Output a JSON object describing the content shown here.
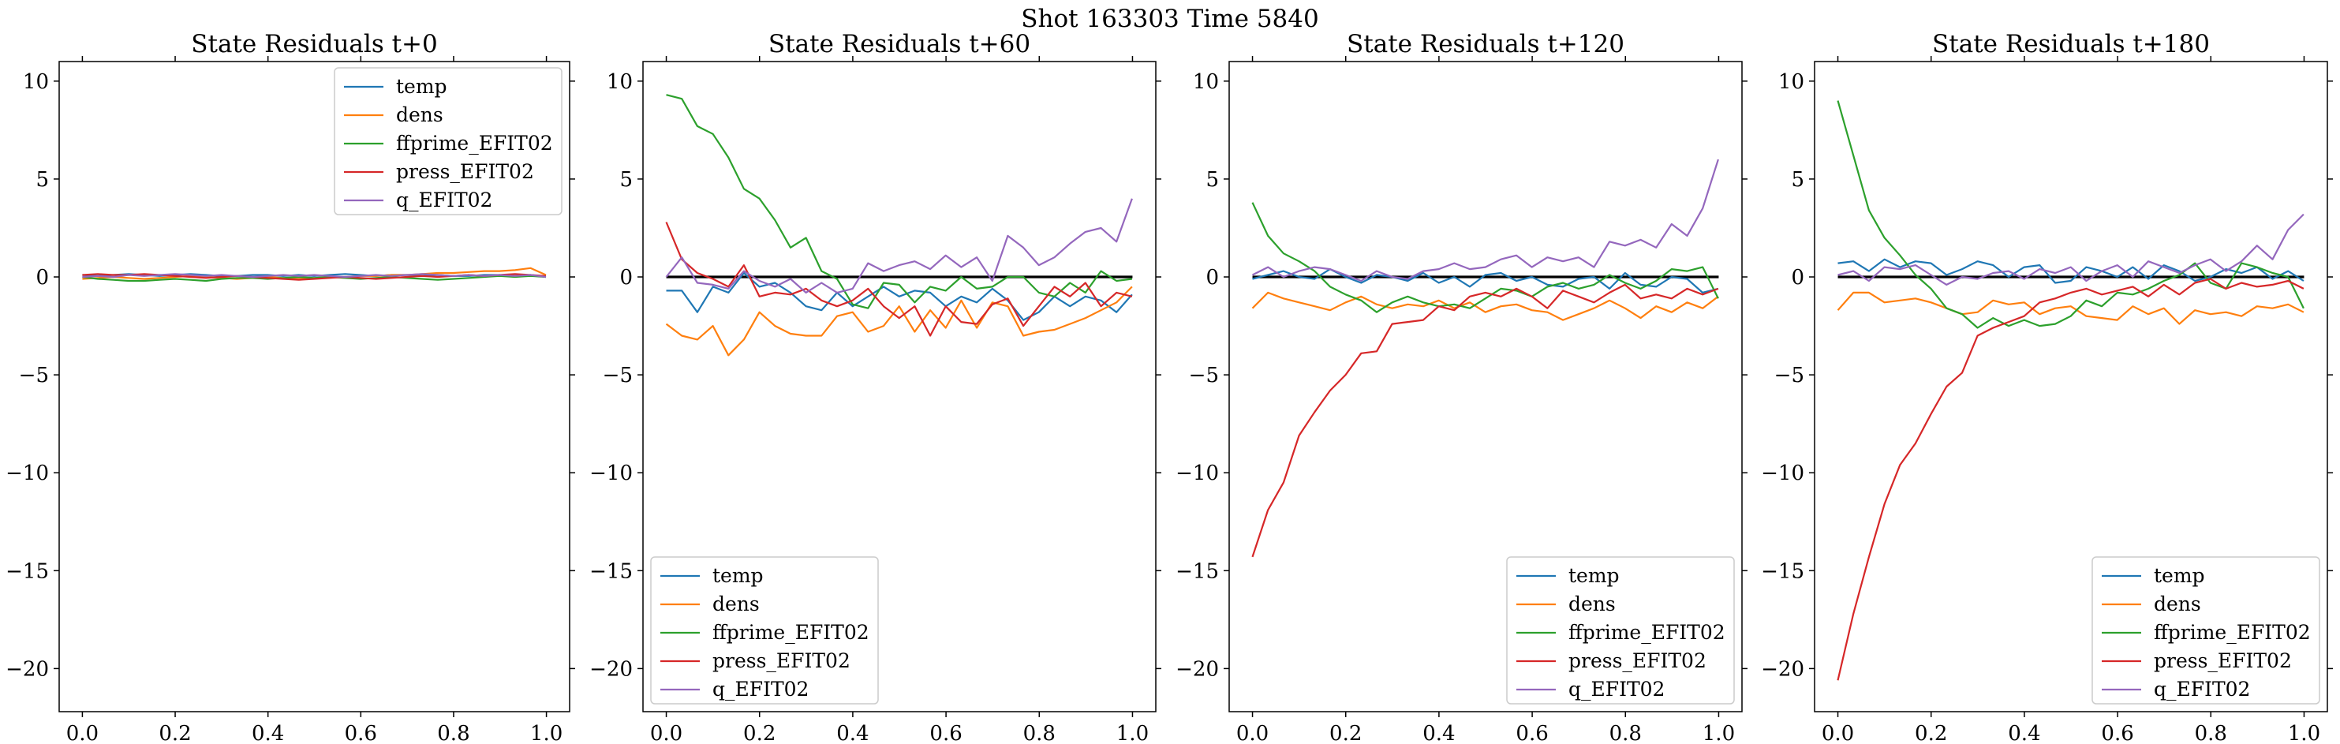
{
  "figure": {
    "suptitle": "Shot 163303   Time 5840"
  },
  "colors": {
    "temp": "#1f77b4",
    "dens": "#ff7f0e",
    "ffprime_EFIT02": "#2ca02c",
    "press_EFIT02": "#d62728",
    "q_EFIT02": "#9467bd",
    "zero_line": "#000000"
  },
  "chart_data": [
    {
      "type": "line",
      "title": "State Residuals t+0",
      "xlim": [
        -0.05,
        1.05
      ],
      "ylim": [
        -22.2,
        11.0
      ],
      "xticks": [
        "0.0",
        "0.2",
        "0.4",
        "0.6",
        "0.8",
        "1.0"
      ],
      "yticks": [
        "10",
        "5",
        "0",
        "−5",
        "−10",
        "−15",
        "−20"
      ],
      "legend_position": "upper-right",
      "zero_line": false,
      "x_start": 0,
      "x_step": 0.0333,
      "series": [
        {
          "name": "temp",
          "values": [
            0.1,
            0.05,
            0.1,
            0.15,
            0.1,
            0.05,
            0.1,
            0.15,
            0.1,
            0.05,
            0.05,
            0.1,
            0.1,
            0.05,
            0.1,
            0.05,
            0.1,
            0.15,
            0.1,
            0.05,
            0.1,
            0.1,
            0.05,
            0.1,
            0.05,
            0.05,
            0.1,
            0.1,
            0.05,
            0.1,
            0.0
          ]
        },
        {
          "name": "dens",
          "values": [
            -0.1,
            -0.05,
            0.0,
            -0.05,
            -0.1,
            -0.05,
            0.0,
            0.05,
            0.0,
            -0.05,
            -0.1,
            -0.05,
            0.0,
            -0.05,
            -0.1,
            -0.05,
            0.0,
            0.0,
            0.05,
            0.05,
            0.1,
            0.1,
            0.15,
            0.2,
            0.2,
            0.25,
            0.3,
            0.3,
            0.35,
            0.45,
            0.1
          ]
        },
        {
          "name": "ffprime_EFIT02",
          "values": [
            0.0,
            -0.1,
            -0.15,
            -0.2,
            -0.2,
            -0.15,
            -0.1,
            -0.15,
            -0.2,
            -0.1,
            -0.05,
            -0.05,
            -0.1,
            -0.05,
            0.0,
            -0.05,
            0.0,
            -0.05,
            -0.1,
            -0.05,
            0.0,
            -0.05,
            -0.1,
            -0.15,
            -0.1,
            -0.05,
            0.0,
            0.05,
            0.0,
            0.05,
            0.0
          ]
        },
        {
          "name": "press_EFIT02",
          "values": [
            0.1,
            0.15,
            0.1,
            0.1,
            0.15,
            0.1,
            0.05,
            0.0,
            -0.05,
            0.0,
            0.05,
            0.0,
            -0.05,
            -0.1,
            -0.15,
            -0.1,
            -0.05,
            0.0,
            -0.05,
            -0.1,
            -0.05,
            0.0,
            0.05,
            0.0,
            0.05,
            0.1,
            0.05,
            0.1,
            0.15,
            0.1,
            0.05
          ]
        },
        {
          "name": "q_EFIT02",
          "values": [
            0.0,
            0.05,
            0.0,
            0.1,
            0.05,
            0.1,
            0.15,
            0.1,
            0.05,
            0.1,
            0.05,
            0.0,
            0.05,
            0.1,
            0.05,
            0.1,
            0.05,
            0.0,
            0.05,
            0.1,
            0.05,
            0.1,
            0.15,
            0.1,
            0.05,
            0.1,
            0.05,
            0.1,
            0.05,
            0.1,
            0.0
          ]
        }
      ]
    },
    {
      "type": "line",
      "title": "State Residuals t+60",
      "xlim": [
        -0.05,
        1.05
      ],
      "ylim": [
        -22.2,
        11.0
      ],
      "xticks": [
        "0.0",
        "0.2",
        "0.4",
        "0.6",
        "0.8",
        "1.0"
      ],
      "yticks": [
        "10",
        "5",
        "0",
        "−5",
        "−10",
        "−15",
        "−20"
      ],
      "legend_position": "lower-left",
      "zero_line": true,
      "x_start": 0,
      "x_step": 0.0333,
      "series": [
        {
          "name": "temp",
          "values": [
            -0.7,
            -0.7,
            -1.8,
            -0.5,
            -0.8,
            0.2,
            -0.5,
            -0.3,
            -0.8,
            -1.5,
            -1.7,
            -0.8,
            -1.5,
            -1.0,
            -0.5,
            -1.0,
            -0.7,
            -0.8,
            -1.5,
            -1.0,
            -1.3,
            -0.6,
            -1.2,
            -2.2,
            -1.8,
            -1.0,
            -1.5,
            -1.0,
            -1.2,
            -1.8,
            -0.9
          ]
        },
        {
          "name": "dens",
          "values": [
            -2.4,
            -3.0,
            -3.2,
            -2.5,
            -4.0,
            -3.2,
            -1.8,
            -2.5,
            -2.9,
            -3.0,
            -3.0,
            -2.0,
            -1.8,
            -2.8,
            -2.5,
            -1.5,
            -2.8,
            -1.7,
            -2.6,
            -1.2,
            -2.6,
            -1.3,
            -1.5,
            -3.0,
            -2.8,
            -2.7,
            -2.4,
            -2.1,
            -1.7,
            -1.3,
            -0.5
          ]
        },
        {
          "name": "ffprime_EFIT02",
          "values": [
            9.3,
            9.1,
            7.7,
            7.3,
            6.1,
            4.5,
            4.0,
            2.9,
            1.5,
            2.0,
            0.3,
            -0.1,
            -1.4,
            -1.6,
            -0.3,
            -0.4,
            -1.3,
            -0.5,
            -0.7,
            0.0,
            -0.6,
            -0.5,
            0.0,
            0.0,
            -0.8,
            -1.0,
            -0.3,
            -0.8,
            0.3,
            -0.2,
            -0.1
          ]
        },
        {
          "name": "press_EFIT02",
          "values": [
            2.8,
            0.9,
            0.2,
            -0.1,
            -0.5,
            0.6,
            -1.0,
            -0.8,
            -0.9,
            -0.6,
            -1.2,
            -1.5,
            -1.2,
            -0.6,
            -1.5,
            -2.1,
            -1.5,
            -3.0,
            -1.5,
            -2.3,
            -2.4,
            -1.4,
            -1.1,
            -2.5,
            -1.5,
            -0.5,
            -1.0,
            -0.3,
            -1.5,
            -0.8,
            -1.0
          ]
        },
        {
          "name": "q_EFIT02",
          "values": [
            0.0,
            1.0,
            -0.3,
            -0.4,
            -0.6,
            0.3,
            -0.2,
            -0.5,
            -0.1,
            -0.8,
            -0.3,
            -0.8,
            -0.6,
            0.7,
            0.3,
            0.6,
            0.8,
            0.4,
            1.1,
            0.5,
            1.0,
            -0.2,
            2.1,
            1.5,
            0.6,
            1.0,
            1.7,
            2.3,
            2.5,
            1.8,
            4.0
          ]
        }
      ]
    },
    {
      "type": "line",
      "title": "State Residuals t+120",
      "xlim": [
        -0.05,
        1.05
      ],
      "ylim": [
        -22.2,
        11.0
      ],
      "xticks": [
        "0.0",
        "0.2",
        "0.4",
        "0.6",
        "0.8",
        "1.0"
      ],
      "yticks": [
        "10",
        "5",
        "0",
        "−5",
        "−10",
        "−15",
        "−20"
      ],
      "legend_position": "lower-right",
      "zero_line": true,
      "x_start": 0,
      "x_step": 0.0333,
      "series": [
        {
          "name": "temp",
          "values": [
            -0.1,
            0.1,
            0.3,
            0.0,
            -0.1,
            0.4,
            0.0,
            -0.3,
            0.1,
            0.0,
            -0.2,
            0.2,
            -0.3,
            0.0,
            -0.5,
            0.1,
            0.2,
            -0.2,
            0.0,
            -0.4,
            -0.5,
            -0.1,
            0.0,
            -0.6,
            0.2,
            -0.4,
            -0.5,
            0.0,
            -0.1,
            -0.8,
            -0.6
          ]
        },
        {
          "name": "dens",
          "values": [
            -1.6,
            -0.8,
            -1.1,
            -1.3,
            -1.5,
            -1.7,
            -1.3,
            -1.0,
            -1.4,
            -1.6,
            -1.4,
            -1.5,
            -1.2,
            -1.6,
            -1.3,
            -1.8,
            -1.5,
            -1.4,
            -1.7,
            -1.8,
            -2.2,
            -1.9,
            -1.6,
            -1.2,
            -1.6,
            -2.1,
            -1.5,
            -1.8,
            -1.3,
            -1.6,
            -1.0
          ]
        },
        {
          "name": "ffprime_EFIT02",
          "values": [
            3.8,
            2.1,
            1.2,
            0.8,
            0.3,
            -0.5,
            -0.9,
            -1.2,
            -1.8,
            -1.3,
            -1.0,
            -1.3,
            -1.5,
            -1.4,
            -1.6,
            -1.1,
            -0.6,
            -0.7,
            -1.0,
            -0.5,
            -0.3,
            -0.6,
            -0.4,
            0.1,
            -0.3,
            -0.6,
            -0.2,
            0.4,
            0.3,
            0.5,
            -1.1
          ]
        },
        {
          "name": "press_EFIT02",
          "values": [
            -14.3,
            -11.9,
            -10.5,
            -8.1,
            -6.9,
            -5.8,
            -5.0,
            -3.9,
            -3.8,
            -2.4,
            -2.3,
            -2.2,
            -1.5,
            -1.7,
            -1.0,
            -0.8,
            -1.0,
            -0.6,
            -1.0,
            -1.6,
            -0.7,
            -1.0,
            -1.3,
            -0.8,
            -0.4,
            -1.1,
            -0.9,
            -1.1,
            -0.6,
            -0.9,
            -0.6
          ]
        },
        {
          "name": "q_EFIT02",
          "values": [
            0.1,
            0.5,
            0.0,
            0.3,
            0.5,
            0.4,
            0.1,
            -0.2,
            0.3,
            0.0,
            -0.1,
            0.3,
            0.4,
            0.7,
            0.4,
            0.5,
            0.9,
            1.1,
            0.5,
            1.0,
            0.8,
            1.0,
            0.5,
            1.8,
            1.6,
            1.9,
            1.5,
            2.7,
            2.1,
            3.5,
            6.0
          ]
        }
      ]
    },
    {
      "type": "line",
      "title": "State Residuals t+180",
      "xlim": [
        -0.05,
        1.05
      ],
      "ylim": [
        -22.2,
        11.0
      ],
      "xticks": [
        "0.0",
        "0.2",
        "0.4",
        "0.6",
        "0.8",
        "1.0"
      ],
      "yticks": [
        "10",
        "5",
        "0",
        "−5",
        "−10",
        "−15",
        "−20"
      ],
      "legend_position": "lower-right",
      "zero_line": true,
      "x_start": 0,
      "x_step": 0.0333,
      "series": [
        {
          "name": "temp",
          "values": [
            0.7,
            0.8,
            0.3,
            0.9,
            0.5,
            0.8,
            0.7,
            0.1,
            0.4,
            0.8,
            0.6,
            0.0,
            0.5,
            0.6,
            -0.3,
            -0.2,
            0.5,
            0.3,
            0.0,
            0.5,
            -0.1,
            0.6,
            0.3,
            -0.2,
            0.0,
            0.4,
            0.2,
            0.5,
            -0.1,
            0.3,
            -0.2
          ]
        },
        {
          "name": "dens",
          "values": [
            -1.7,
            -0.8,
            -0.8,
            -1.3,
            -1.2,
            -1.1,
            -1.3,
            -1.6,
            -1.9,
            -1.8,
            -1.2,
            -1.4,
            -1.3,
            -1.9,
            -1.6,
            -1.5,
            -2.0,
            -2.1,
            -2.2,
            -1.5,
            -1.9,
            -1.6,
            -2.4,
            -1.7,
            -1.9,
            -1.8,
            -2.0,
            -1.5,
            -1.6,
            -1.4,
            -1.8
          ]
        },
        {
          "name": "ffprime_EFIT02",
          "values": [
            9.0,
            6.2,
            3.4,
            2.0,
            1.1,
            0.1,
            -0.6,
            -1.6,
            -1.9,
            -2.6,
            -2.1,
            -2.5,
            -2.2,
            -2.5,
            -2.4,
            -2.0,
            -1.2,
            -1.5,
            -0.8,
            -0.9,
            -0.6,
            -0.2,
            0.1,
            0.7,
            -0.3,
            -0.6,
            0.7,
            0.5,
            0.2,
            0.0,
            -1.6
          ]
        },
        {
          "name": "press_EFIT02",
          "values": [
            -20.6,
            -17.2,
            -14.3,
            -11.6,
            -9.6,
            -8.5,
            -7.0,
            -5.6,
            -4.9,
            -3.0,
            -2.6,
            -2.3,
            -2.0,
            -1.3,
            -1.1,
            -0.8,
            -0.6,
            -0.9,
            -0.7,
            -0.5,
            -1.0,
            -0.4,
            -0.9,
            -0.3,
            -0.1,
            -0.6,
            -0.3,
            -0.5,
            -0.4,
            -0.2,
            -0.6
          ]
        },
        {
          "name": "q_EFIT02",
          "values": [
            0.1,
            0.3,
            -0.2,
            0.5,
            0.4,
            0.6,
            0.1,
            -0.4,
            0.0,
            -0.1,
            0.2,
            0.3,
            -0.1,
            0.4,
            0.2,
            0.5,
            -0.2,
            0.3,
            0.6,
            0.0,
            0.8,
            0.5,
            0.2,
            0.6,
            0.9,
            0.3,
            0.8,
            1.6,
            0.9,
            2.4,
            3.2
          ]
        }
      ]
    }
  ]
}
